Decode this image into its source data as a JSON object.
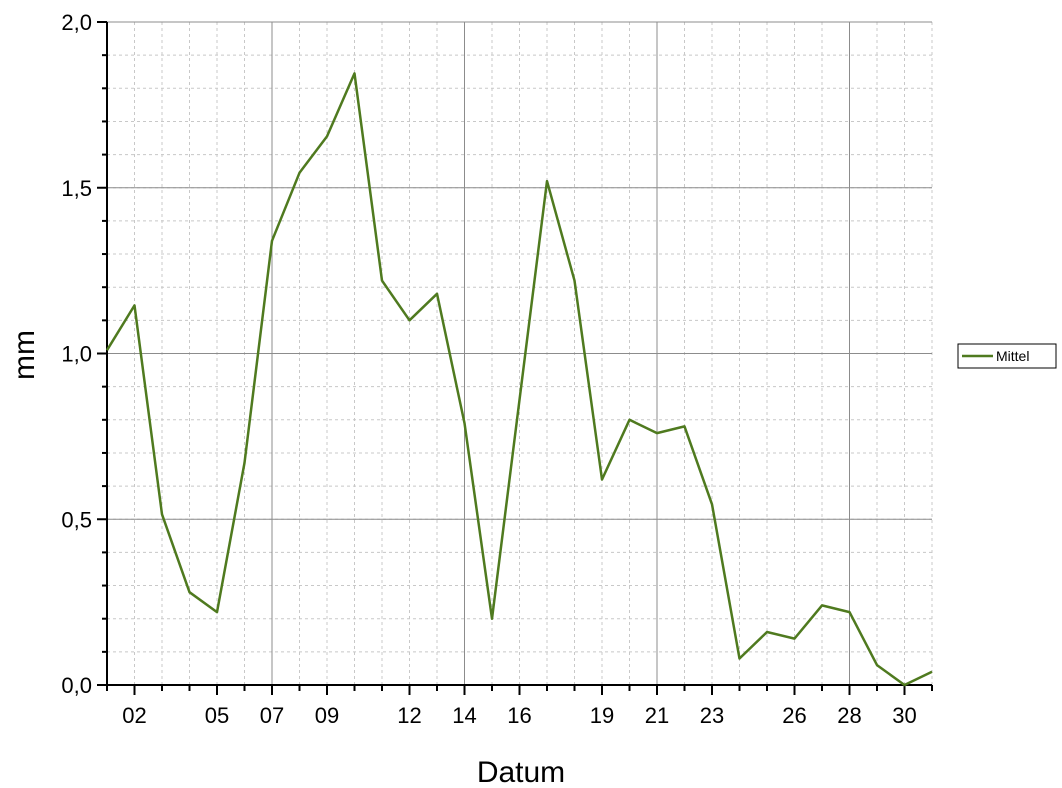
{
  "chart_data": {
    "type": "line",
    "xlabel": "Datum",
    "ylabel": "mm",
    "xlim": [
      1,
      31
    ],
    "ylim": [
      0,
      2
    ],
    "x_ticks": [
      2,
      5,
      7,
      9,
      12,
      14,
      16,
      19,
      21,
      23,
      26,
      28,
      30
    ],
    "x_tick_labels": [
      "02",
      "05",
      "07",
      "09",
      "12",
      "14",
      "16",
      "19",
      "21",
      "23",
      "26",
      "28",
      "30"
    ],
    "y_ticks": [
      0,
      0.5,
      1.0,
      1.5,
      2.0
    ],
    "y_tick_labels": [
      "0,0",
      "0,5",
      "1,0",
      "1,5",
      "2,0"
    ],
    "grid": true,
    "legend_position": "right",
    "series": [
      {
        "name": "Mittel",
        "color": "#4f7a1f",
        "x": [
          1,
          2,
          3,
          4,
          5,
          6,
          7,
          8,
          9,
          10,
          11,
          12,
          13,
          14,
          15,
          16,
          17,
          18,
          19,
          20,
          21,
          22,
          23,
          24,
          25,
          26,
          27,
          28,
          29,
          30,
          31
        ],
        "y": [
          1.01,
          1.145,
          0.515,
          0.28,
          0.22,
          0.67,
          1.34,
          1.545,
          1.655,
          1.845,
          1.22,
          1.1,
          1.18,
          0.79,
          0.2,
          0.86,
          1.52,
          1.22,
          0.62,
          0.8,
          0.76,
          0.78,
          0.545,
          0.08,
          0.16,
          0.14,
          0.24,
          0.22,
          0.06,
          0.0,
          0.04
        ]
      }
    ]
  }
}
